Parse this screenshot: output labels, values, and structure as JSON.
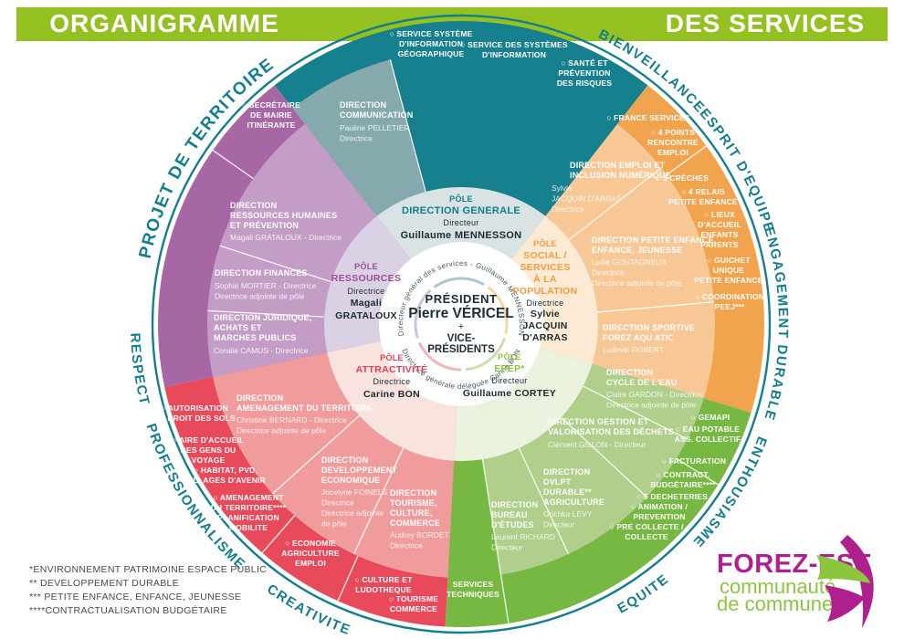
{
  "banner": {
    "left": "ORGANIGRAMME",
    "right": "DES SERVICES"
  },
  "center": {
    "title": "PRÉSIDENT",
    "name": "Pierre VÉRICEL",
    "plus": "+",
    "vice1": "VICE-",
    "vice2": "PRÉSIDENTS",
    "ring_top": "Directeur général des services - Guillaume MENNESSON",
    "ring_bottom": "Directrice générale déléguée Carine BON"
  },
  "poles": [
    {
      "id": "pole-direction-generale",
      "lines": [
        "PÔLE",
        "DIRECTION GENERALE",
        "Directeur",
        "Guillaume MENNESSON"
      ]
    },
    {
      "id": "pole-social-services-population",
      "lines": [
        "PÔLE",
        "SOCIAL /",
        "SERVICES",
        "À LA",
        "POPULATION",
        "Directrice",
        "Sylvie",
        "JACQUIN",
        "D'ARRAS"
      ]
    },
    {
      "id": "pole-ressources",
      "lines": [
        "PÔLE",
        "RESSOURCES",
        "Directrice",
        "Magali",
        "GRATALOUX"
      ]
    },
    {
      "id": "pole-attractivite",
      "lines": [
        "PÔLE",
        "ATTRACTIVITÉ",
        "Directrice",
        "Carine BON"
      ]
    },
    {
      "id": "pole-epep",
      "lines": [
        "PÔLE",
        "EPEP*",
        "Directeur",
        "Guillaume CORTEY"
      ]
    }
  ],
  "directions": [
    {
      "id": "direction-communication",
      "title": [
        "DIRECTION",
        "COMMUNICATION"
      ],
      "sub": [
        "Pauline PELLETIER",
        "Directrice"
      ]
    },
    {
      "id": "direction-ressources-humaines-prevention",
      "title": [
        "DIRECTION",
        "RESSOURCES HUMAINES",
        "ET PRÉVENTION"
      ],
      "sub": [
        "Magali GRATALOUX - Directrice"
      ]
    },
    {
      "id": "direction-finances",
      "title": [
        "DIRECTION FINANCES"
      ],
      "sub": [
        "Sophie MORTIER - Directrice",
        "Directrice adjointe de pôle"
      ]
    },
    {
      "id": "direction-juridique-achats-marches-publics",
      "title": [
        "DIRECTION JURIDIQUE,",
        "ACHATS ET",
        "MARCHES PUBLICS"
      ],
      "sub": [
        "Coralie CAMUS - Directrice"
      ]
    },
    {
      "id": "direction-amenagement-du-territoire",
      "title": [
        "DIRECTION",
        "AMENAGEMENT DU TERRITOIRE"
      ],
      "sub": [
        "Christine BERNARD - Directrice",
        "Directrice adjointe de pôle"
      ]
    },
    {
      "id": "direction-developpement-economique",
      "title": [
        "DIRECTION",
        "DEVELOPPEMENT",
        "ECONOMIQUE"
      ],
      "sub": [
        "Jocelyne FOINELS",
        "Directrice",
        "Directrice adjointe",
        "de pôle"
      ]
    },
    {
      "id": "direction-tourisme-culture-commerce",
      "title": [
        "DIRECTION",
        "TOURISME,",
        "CULTURE,",
        "COMMERCE"
      ],
      "sub": [
        "Audrey BORDET",
        "Directrice"
      ]
    },
    {
      "id": "direction-bureau-etudes",
      "title": [
        "DIRECTION",
        "BUREAU",
        "D'ÉTUDES"
      ],
      "sub": [
        "Laurent RICHARD",
        "Directeur"
      ]
    },
    {
      "id": "direction-developpement-durable-agriculture",
      "title": [
        "DIRECTION",
        "DVLPT",
        "DURABLE**",
        "AGRICULTURE"
      ],
      "sub": [
        "Grichka LEVY",
        "Directeur"
      ]
    },
    {
      "id": "direction-gestion-valorisation-dechets",
      "title": [
        "DIRECTION GESTION ET",
        "VALORISATION DES DÉCHETS"
      ],
      "sub": [
        "Clément GILLON - Directeur"
      ]
    },
    {
      "id": "direction-cycle-de-leau",
      "title": [
        "DIRECTION",
        "CYCLE DE L'EAU"
      ],
      "sub": [
        "Claire GARDON - Directrice",
        "Directrice adjointe de pôle"
      ]
    },
    {
      "id": "direction-sportive-forez-aquatic",
      "title": [
        "DIRECTION SPORTIVE",
        "FOREZ AQU ATIC"
      ],
      "sub": [
        "Ludovic ROBERT"
      ]
    },
    {
      "id": "direction-emploi-inclusion-numerique",
      "title": [
        "DIRECTION EMPLOI ET",
        "INCLUSION NUMÉRIQUE"
      ],
      "sub": [
        "Sylvie",
        "JACQUIN D'ARRAS",
        "Directrice"
      ]
    },
    {
      "id": "direction-petite-enfance-enfance-jeunesse",
      "title": [
        "DIRECTION PETITE ENFANCE,",
        "ENFANCE, JEUNESSE"
      ],
      "sub": [
        "Lydie GOUTAGNEUX",
        "Directrice",
        "Directrice adjointe de pôle"
      ]
    }
  ],
  "services": [
    {
      "id": "service-systeme-information-geographique",
      "lines": [
        "○ SERVICE SYSTÈME",
        "D'INFORMATION",
        "GÉOGRAPHIQUE"
      ]
    },
    {
      "id": "service-des-systemes-information",
      "lines": [
        "○ SERVICE DES SYSTÈMES",
        "D'INFORMATION"
      ]
    },
    {
      "id": "sante-prevention-des-risques",
      "lines": [
        "○ SANTÉ ET",
        "PRÉVENTION",
        "DES RISQUES"
      ]
    },
    {
      "id": "france-services",
      "lines": [
        "○ FRANCE SERVICES"
      ]
    },
    {
      "id": "points-rencontre-emploi",
      "lines": [
        "○ 4 POINTS",
        "RENCONTRE",
        "EMPLOI"
      ]
    },
    {
      "id": "creches",
      "lines": [
        "○ 5 CRÈCHES"
      ]
    },
    {
      "id": "relais-petite-enfance",
      "lines": [
        "○ 4 RELAIS",
        "PETITE ENFANCE"
      ]
    },
    {
      "id": "lieux-accueil-enfants-parents",
      "lines": [
        "○ LIEUX",
        "D'ACCUEIL",
        "ENFANTS",
        "PARENTS"
      ]
    },
    {
      "id": "guichet-unique-petite-enfance",
      "lines": [
        "○ GUICHET",
        "UNIQUE",
        "PETITE ENFANCE"
      ]
    },
    {
      "id": "coordination-peej",
      "lines": [
        "○ COORDINATION",
        "PEEJ***"
      ]
    },
    {
      "id": "gemapi",
      "lines": [
        "○ GEMAPI"
      ]
    },
    {
      "id": "eau-potable-assainissement-collectif",
      "lines": [
        "○ EAU POTABLE",
        "ASS. COLLECTIF"
      ]
    },
    {
      "id": "facturation",
      "lines": [
        "○ FACTURATION"
      ]
    },
    {
      "id": "contractualisation-budgetaire",
      "lines": [
        "○ CONTRACT.",
        "BUDGÉTAIRE****"
      ]
    },
    {
      "id": "decheteries",
      "lines": [
        "○ 5 DECHETERIES"
      ]
    },
    {
      "id": "animation-prevention",
      "lines": [
        "○ ANIMATION /",
        "PREVENTION"
      ]
    },
    {
      "id": "pre-collecte-collecte",
      "lines": [
        "○ PRE COLLECTE /",
        "COLLECTE"
      ]
    },
    {
      "id": "services-techniques",
      "lines": [
        "SERVICES",
        "TECHNIQUES"
      ]
    },
    {
      "id": "autorisation-droit-des-sols",
      "lines": [
        "○ AUTORISATION",
        "DU DROIT DES SOLS"
      ]
    },
    {
      "id": "aire-accueil-gens-du-voyage",
      "lines": [
        "○ AIRE D'ACCUEIL",
        "DES GENS DU",
        "VOYAGE"
      ]
    },
    {
      "id": "habitat-pvd-villages-avenir",
      "lines": [
        "○ HABITAT, PVD,",
        "VILLAGES D'AVENIR"
      ]
    },
    {
      "id": "amenagement-territoire-planification-mobilite",
      "lines": [
        "○ AMENAGEMENT",
        "DU TERRITOIRE****",
        "PLANIFICATION",
        "MOBILITE"
      ]
    },
    {
      "id": "economie-agriculture-emploi",
      "lines": [
        "○ ECONOMIE",
        "AGRICULTURE",
        "EMPLOI"
      ]
    },
    {
      "id": "culture-et-ludotheque",
      "lines": [
        "○ CULTURE ET",
        "LUDOTHEQUE"
      ]
    },
    {
      "id": "tourisme-commerce",
      "lines": [
        "○ TOURISME",
        "COMMERCE"
      ]
    },
    {
      "id": "secretaire-mairie-itinerante",
      "lines": [
        "○ SECRÉTAIRE",
        "DE MAIRIE",
        "ITINÉRANTE"
      ]
    }
  ],
  "values": [
    {
      "id": "bienveillance",
      "text": "BIENVEILLANCE"
    },
    {
      "id": "esprit-equipe",
      "text": "ESPRIT D'EQUIPE"
    },
    {
      "id": "engagement-durable",
      "text": "ENGAGEMENT DURABLE"
    },
    {
      "id": "enthousiasme",
      "text": "ENTHOUSIASME"
    },
    {
      "id": "equite",
      "text": "EQUITE"
    },
    {
      "id": "creativite",
      "text": "CREATIVITE"
    },
    {
      "id": "professionnalisme",
      "text": "PROFESSIONNALISME"
    },
    {
      "id": "respect",
      "text": "RESPECT"
    },
    {
      "id": "projet-de-territoire",
      "text": "PROJET DE TERRITOIRE"
    }
  ],
  "footnotes": [
    "*ENVIRONNEMENT PATRIMOINE ESPACE PUBLIC",
    "** DEVELOPPEMENT DURABLE",
    "*** PETITE ENFANCE, ENFANCE, JEUNESSE",
    "****CONTRACTUALISATION BUDGÉTAIRE"
  ],
  "logo": {
    "name": "FOREZ-EST",
    "sub1": "communauté",
    "sub2": "de communes"
  },
  "colors": {
    "banner_green": "#94C120",
    "teal": "#17808E",
    "teal_light": "#86A9AD",
    "teal_pale": "#DAE3E3",
    "orange": "#F2A34D",
    "orange_light": "#F7C795",
    "orange_pale": "#FCEAD4",
    "green": "#77B843",
    "green_light": "#AFCF8B",
    "green_pale": "#EBF2DD",
    "red": "#E84A5B",
    "red_light": "#F09B9C",
    "red_pale": "#F9E3DF",
    "purple": "#A767A5",
    "purple_light": "#C49DC6",
    "purple_pale": "#DAD2E4",
    "arc_teal": "#137F8D",
    "pole_teal": "#0F7D8B",
    "pole_orange": "#F49B3D",
    "pole_purple": "#9C4E9C",
    "pole_red": "#E83F55",
    "pole_green": "#8BC53F",
    "ink": "#1C2A32",
    "logo_magenta": "#B01F8E",
    "logo_green": "#8CC63F"
  }
}
